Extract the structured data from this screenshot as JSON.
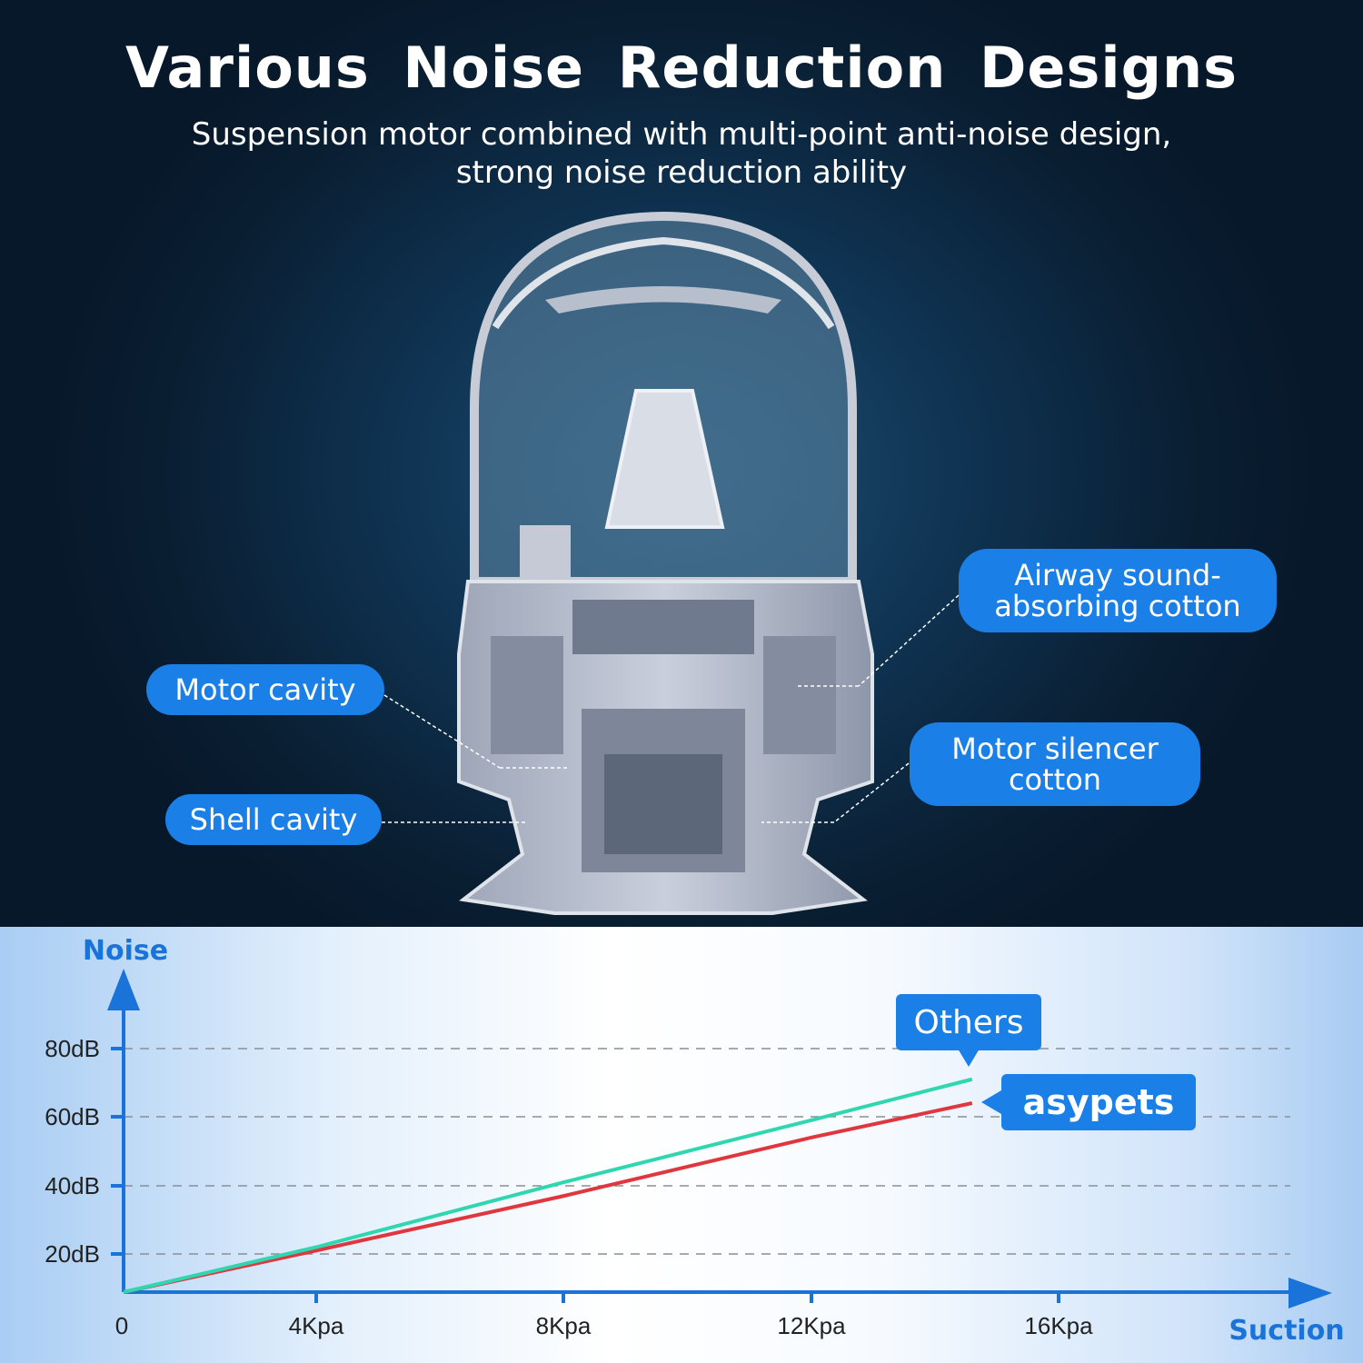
{
  "header": {
    "title": "Various Noise Reduction Designs",
    "subtitle_line1": "Suspension motor combined with multi-point anti-noise design,",
    "subtitle_line2": "strong noise reduction ability"
  },
  "callouts": {
    "airway": {
      "line1": "Airway sound-",
      "line2": "absorbing cotton"
    },
    "motor_cavity": "Motor cavity",
    "shell_cavity": "Shell cavity",
    "motor_silencer": {
      "line1": "Motor silencer",
      "line2": "cotton"
    }
  },
  "colors": {
    "accent": "#1a7fe6",
    "others_line": "#2fd6b0",
    "asypets_line": "#e0373f",
    "background_top": "#0f3352"
  },
  "chart_data": {
    "type": "line",
    "xlabel": "Suction",
    "ylabel": "Noise",
    "x_ticks": [
      {
        "value": 0,
        "label": "0"
      },
      {
        "value": 4,
        "label": "4Kpa"
      },
      {
        "value": 8,
        "label": "8Kpa"
      },
      {
        "value": 12,
        "label": "12Kpa"
      },
      {
        "value": 16,
        "label": "16Kpa"
      }
    ],
    "y_ticks": [
      {
        "value": 20,
        "label": "20dB"
      },
      {
        "value": 40,
        "label": "40dB"
      },
      {
        "value": 60,
        "label": "60dB"
      },
      {
        "value": 80,
        "label": "80dB"
      }
    ],
    "grid": "horizontal-dashed",
    "x": [
      0,
      4,
      8,
      12,
      14.6
    ],
    "series": [
      {
        "name": "Others",
        "color": "#2fd6b0",
        "values": [
          0,
          22,
          41,
          59,
          71
        ]
      },
      {
        "name": "asypets",
        "color": "#e0373f",
        "values": [
          0,
          21,
          37,
          54,
          64
        ]
      }
    ]
  }
}
